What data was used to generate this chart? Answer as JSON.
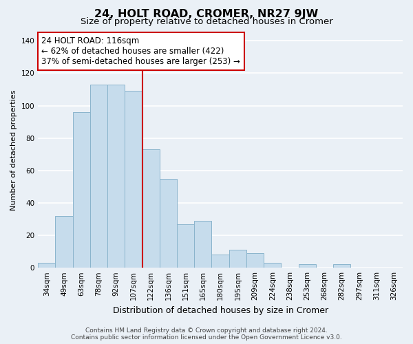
{
  "title": "24, HOLT ROAD, CROMER, NR27 9JW",
  "subtitle": "Size of property relative to detached houses in Cromer",
  "xlabel": "Distribution of detached houses by size in Cromer",
  "ylabel": "Number of detached properties",
  "bar_labels": [
    "34sqm",
    "49sqm",
    "63sqm",
    "78sqm",
    "92sqm",
    "107sqm",
    "122sqm",
    "136sqm",
    "151sqm",
    "165sqm",
    "180sqm",
    "195sqm",
    "209sqm",
    "224sqm",
    "238sqm",
    "253sqm",
    "268sqm",
    "282sqm",
    "297sqm",
    "311sqm",
    "326sqm"
  ],
  "bar_values": [
    3,
    32,
    96,
    113,
    113,
    109,
    73,
    55,
    27,
    29,
    8,
    11,
    9,
    3,
    0,
    2,
    0,
    2,
    0,
    0,
    0
  ],
  "bar_color": "#c6dcec",
  "bar_edge_color": "#8ab4cc",
  "ref_line_color": "#cc0000",
  "annotation_line1": "24 HOLT ROAD: 116sqm",
  "annotation_line2": "← 62% of detached houses are smaller (422)",
  "annotation_line3": "37% of semi-detached houses are larger (253) →",
  "annotation_box_color": "#ffffff",
  "annotation_box_edge": "#cc0000",
  "ylim": [
    0,
    145
  ],
  "yticks": [
    0,
    20,
    40,
    60,
    80,
    100,
    120,
    140
  ],
  "footer_line1": "Contains HM Land Registry data © Crown copyright and database right 2024.",
  "footer_line2": "Contains public sector information licensed under the Open Government Licence v3.0.",
  "background_color": "#eaf0f6",
  "grid_color": "#ffffff",
  "title_fontsize": 11.5,
  "subtitle_fontsize": 9.5,
  "xlabel_fontsize": 9,
  "ylabel_fontsize": 8,
  "tick_fontsize": 7.5,
  "annotation_fontsize": 8.5,
  "footer_fontsize": 6.5
}
